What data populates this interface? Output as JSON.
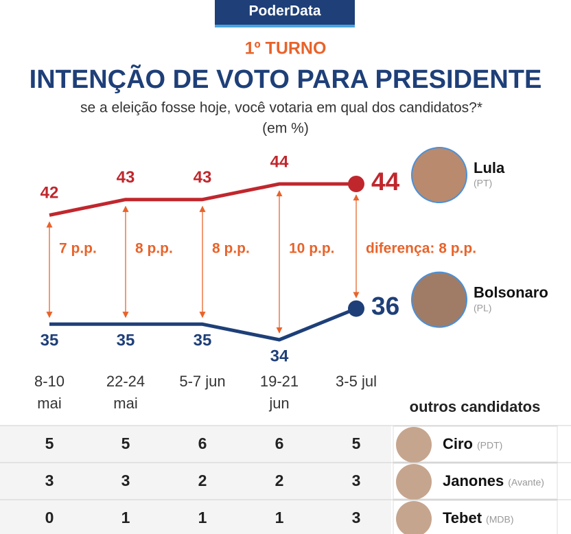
{
  "chart_data": {
    "type": "line",
    "badge": "PoderData",
    "kicker": "1º TURNO",
    "title": "INTENÇÃO DE VOTO PARA PRESIDENTE",
    "subtitle": "se a eleição fosse hoje, você votaria em qual dos candidatos?*",
    "unit": "(em %)",
    "categories": [
      "8-10 mai",
      "22-24 mai",
      "5-7 jun",
      "19-21 jun",
      "3-5 jul"
    ],
    "series": [
      {
        "name": "Lula",
        "party": "(PT)",
        "color": "#c0272d",
        "values": [
          42,
          43,
          43,
          44,
          44
        ]
      },
      {
        "name": "Bolsonaro",
        "party": "(PL)",
        "color": "#1e3f78",
        "values": [
          35,
          35,
          35,
          34,
          36
        ]
      }
    ],
    "differences": {
      "color": "#e8632a",
      "values": [
        7,
        8,
        8,
        10,
        8
      ],
      "value_labels": [
        "7 p.p.",
        "8 p.p.",
        "8 p.p.",
        "10 p.p.",
        "diferença: 8 p.p."
      ]
    },
    "others": {
      "title": "outros candidatos",
      "candidates": [
        {
          "name": "Ciro",
          "party": "(PDT)",
          "values": [
            5,
            5,
            6,
            6,
            5
          ]
        },
        {
          "name": "Janones",
          "party": "(Avante)",
          "values": [
            3,
            3,
            2,
            2,
            3
          ]
        },
        {
          "name": "Tebet",
          "party": "(MDB)",
          "values": [
            0,
            1,
            1,
            1,
            3
          ]
        }
      ]
    }
  }
}
